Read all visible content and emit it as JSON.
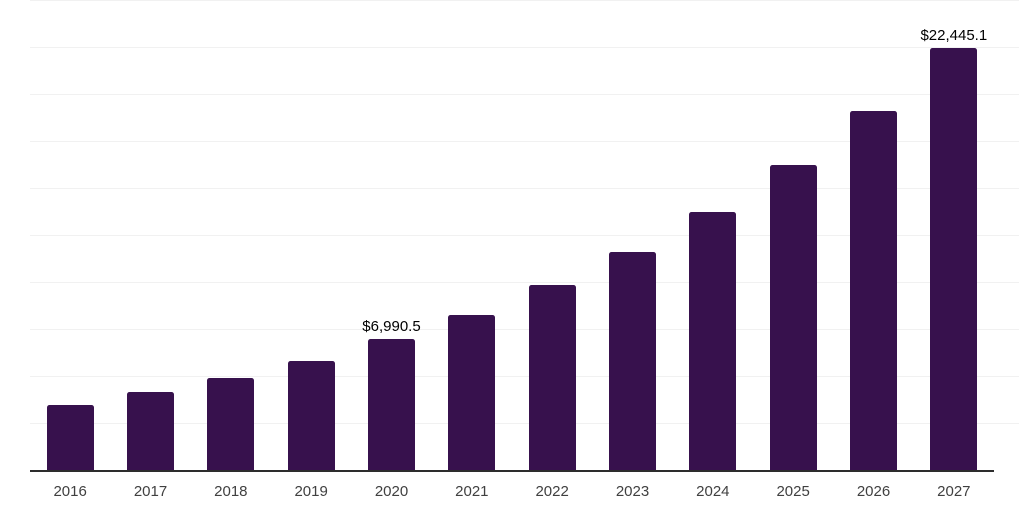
{
  "chart_data": {
    "type": "bar",
    "title": "",
    "xlabel": "",
    "ylabel": "",
    "categories": [
      "2016",
      "2017",
      "2018",
      "2019",
      "2020",
      "2021",
      "2022",
      "2023",
      "2024",
      "2025",
      "2026",
      "2027"
    ],
    "values": [
      3450,
      4130,
      4880,
      5810,
      6990.5,
      8250,
      9820,
      11600,
      13710,
      16240,
      19110,
      22445.1
    ],
    "data_labels": {
      "2020": "$6,990.5",
      "2027": "$22,445.1"
    },
    "ylim": [
      0,
      25000
    ],
    "gridline_step": 2500,
    "grid": "horizontal-only",
    "legend": "none",
    "colors": {
      "bar": "#37114d",
      "axis_line": "#2d2d2d",
      "gridline": "#f1f1f1",
      "tick_label": "#404040",
      "data_label": "#000000",
      "background": "#ffffff"
    }
  }
}
